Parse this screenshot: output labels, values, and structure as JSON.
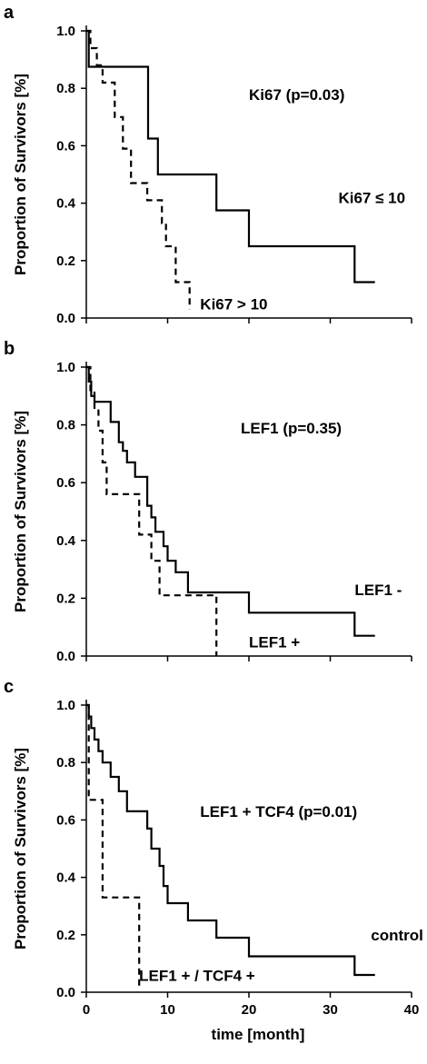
{
  "chart_data": [
    {
      "type": "line",
      "panel": "a",
      "ylabel": "Proportion of Survivors [%]",
      "xlim": [
        0,
        40
      ],
      "ylim": [
        0,
        1.0
      ],
      "yticks": [
        "0.0",
        "0.2",
        "0.4",
        "0.6",
        "0.8",
        "1.0"
      ],
      "annotations": [
        {
          "text": "Ki67 (p=0.03)",
          "x": 20,
          "y": 0.76
        },
        {
          "text": "Ki67 ≤ 10",
          "x": 31,
          "y": 0.4
        },
        {
          "text": "Ki67 > 10",
          "x": 14,
          "y": 0.03
        }
      ],
      "series": [
        {
          "style": "solid",
          "x": [
            0,
            0.3,
            7.6,
            8.8,
            10,
            16,
            20,
            33,
            35.5
          ],
          "y": [
            1.0,
            0.875,
            0.625,
            0.5,
            0.5,
            0.375,
            0.25,
            0.125,
            0.125
          ]
        },
        {
          "style": "dashed",
          "x": [
            0,
            0.5,
            1.3,
            2.0,
            3.5,
            4.5,
            5.5,
            7.5,
            9.3,
            9.8,
            11,
            12.7
          ],
          "y": [
            1.0,
            0.94,
            0.88,
            0.82,
            0.7,
            0.59,
            0.47,
            0.41,
            0.33,
            0.25,
            0.125,
            0.03
          ]
        }
      ]
    },
    {
      "type": "line",
      "panel": "b",
      "ylabel": "Proportion of Survivors [%]",
      "xlim": [
        0,
        40
      ],
      "ylim": [
        0,
        1.0
      ],
      "yticks": [
        "0.0",
        "0.2",
        "0.4",
        "0.6",
        "0.8",
        "1.0"
      ],
      "annotations": [
        {
          "text": "LEF1 (p=0.35)",
          "x": 19,
          "y": 0.77
        },
        {
          "text": "LEF1 -",
          "x": 33,
          "y": 0.21
        },
        {
          "text": "LEF1 +",
          "x": 20,
          "y": 0.03
        }
      ],
      "series": [
        {
          "style": "solid",
          "x": [
            0,
            0.3,
            0.6,
            1.0,
            1.5,
            2.0,
            3.0,
            4.0,
            4.5,
            5.0,
            6.0,
            7.5,
            8.0,
            8.5,
            9.5,
            10,
            11,
            12.5,
            16,
            20,
            33,
            35.5
          ],
          "y": [
            1.0,
            0.95,
            0.9,
            0.88,
            0.88,
            0.88,
            0.81,
            0.74,
            0.71,
            0.67,
            0.62,
            0.52,
            0.48,
            0.43,
            0.38,
            0.33,
            0.29,
            0.22,
            0.22,
            0.15,
            0.07,
            0.07
          ]
        },
        {
          "style": "dashed",
          "x": [
            0,
            0.5,
            1.0,
            1.5,
            2.0,
            2.5,
            6.5,
            7.0,
            8.0,
            9.0,
            12,
            16
          ],
          "y": [
            1.0,
            0.92,
            0.85,
            0.78,
            0.67,
            0.56,
            0.42,
            0.42,
            0.33,
            0.21,
            0.21,
            0.0
          ]
        }
      ]
    },
    {
      "type": "line",
      "panel": "c",
      "ylabel": "Proportion of Survivors [%]",
      "xlabel": "time [month]",
      "xlim": [
        0,
        40
      ],
      "ylim": [
        0,
        1.0
      ],
      "yticks": [
        "0.0",
        "0.2",
        "0.4",
        "0.6",
        "0.8",
        "1.0"
      ],
      "xticks": [
        "0",
        "10",
        "20",
        "30",
        "40"
      ],
      "annotations": [
        {
          "text": "LEF1 + TCF4 (p=0.01)",
          "x": 14,
          "y": 0.61
        },
        {
          "text": "control",
          "x": 35,
          "y": 0.18
        },
        {
          "text": "LEF1 + / TCF4 +",
          "x": 6.5,
          "y": 0.04
        }
      ],
      "series": [
        {
          "style": "solid",
          "x": [
            0,
            0.3,
            0.6,
            1.0,
            1.5,
            2.0,
            3.0,
            4.0,
            5.0,
            6.0,
            7.5,
            8.0,
            9.0,
            9.5,
            10,
            12.5,
            16,
            20,
            33,
            35.5
          ],
          "y": [
            1.0,
            0.96,
            0.92,
            0.88,
            0.84,
            0.8,
            0.75,
            0.7,
            0.63,
            0.63,
            0.57,
            0.5,
            0.44,
            0.37,
            0.31,
            0.25,
            0.19,
            0.125,
            0.06,
            0.06
          ]
        },
        {
          "style": "dashed",
          "x": [
            0,
            0.3,
            2.0,
            6.5
          ],
          "y": [
            1.0,
            0.67,
            0.33,
            0.02
          ]
        }
      ]
    }
  ]
}
